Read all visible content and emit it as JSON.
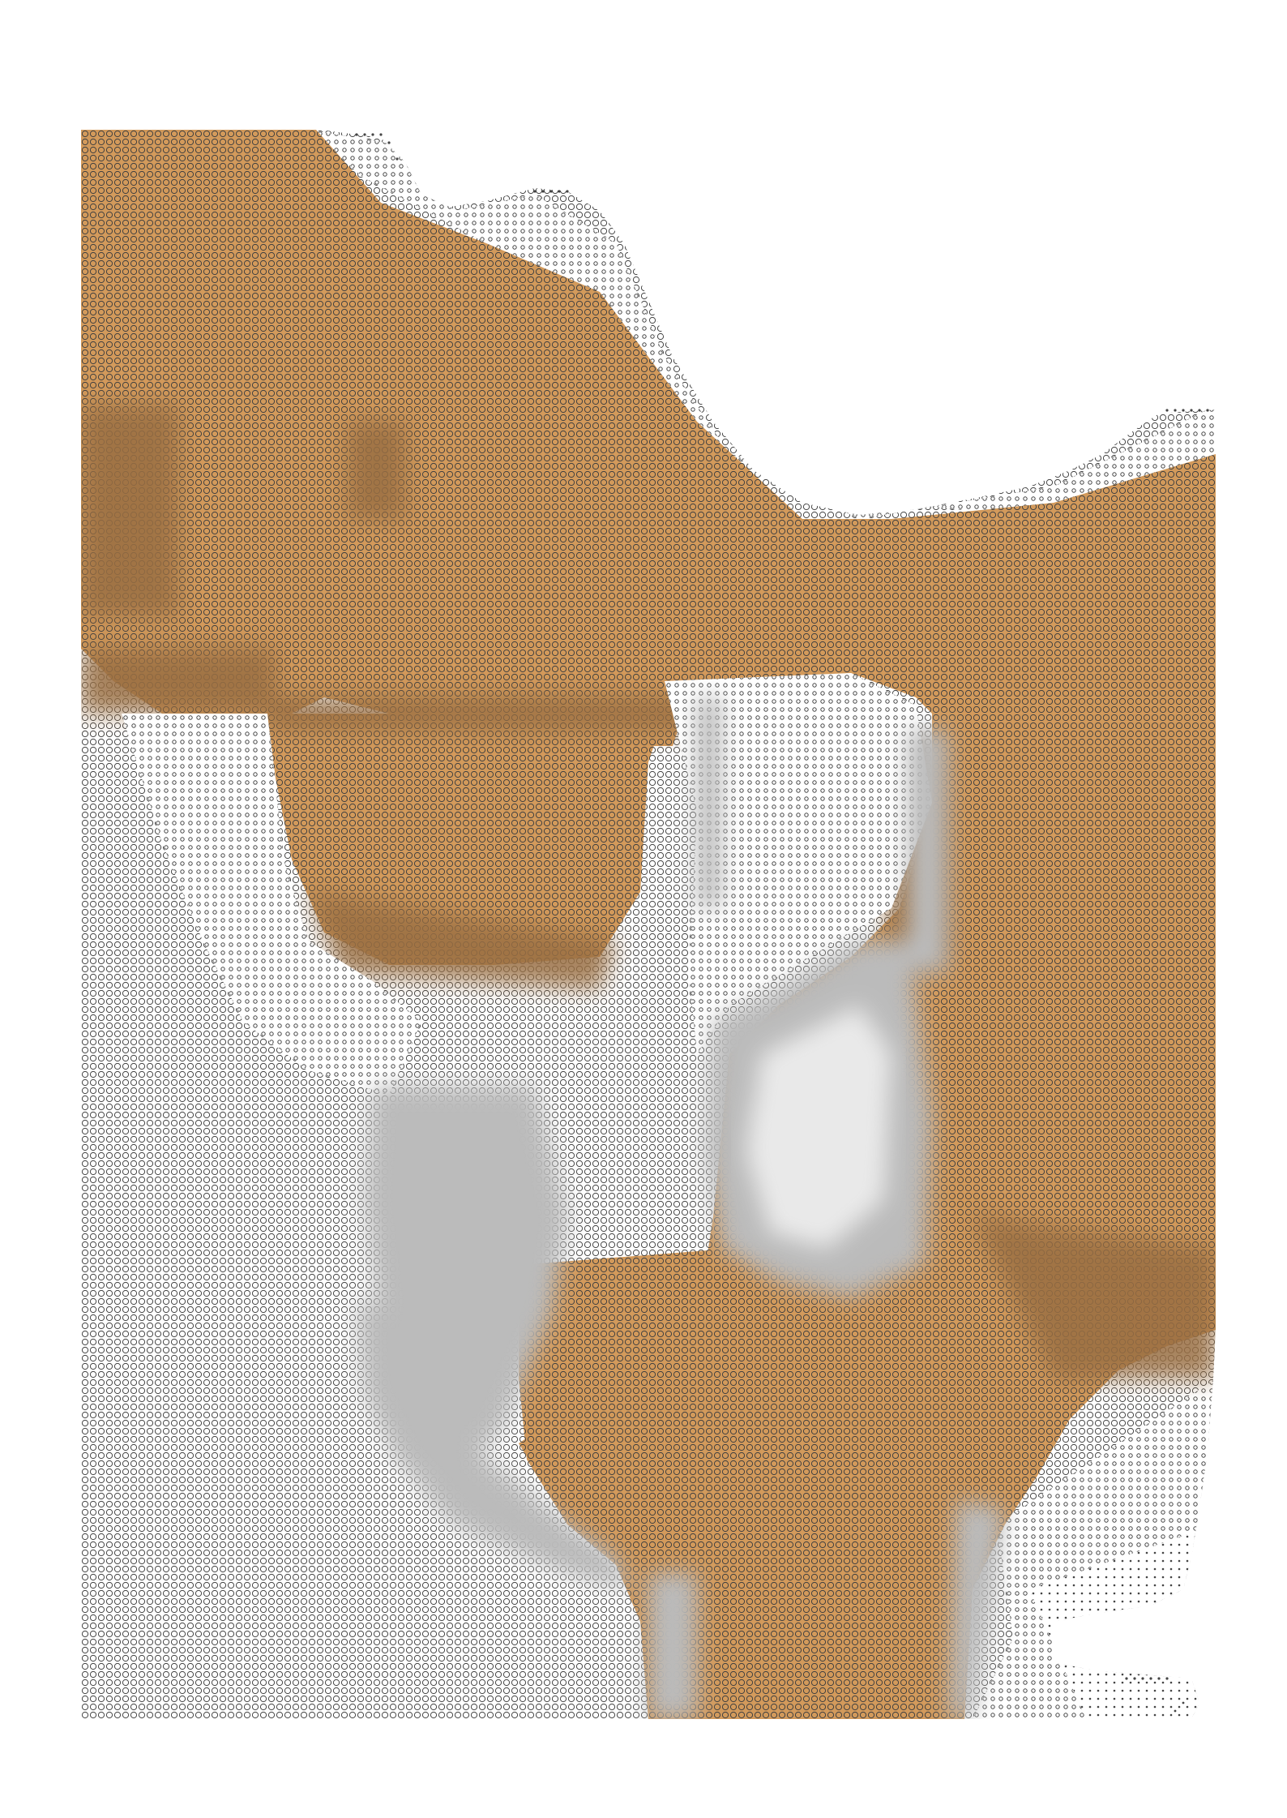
{
  "artwork": {
    "style": "halftone circle grid",
    "subject": "abstract shapes",
    "colors": {
      "background": "#ffffff",
      "fill_ochre": "#d39a5b",
      "stroke_dark": "#444444",
      "fill_light": "#ffffff"
    }
  }
}
